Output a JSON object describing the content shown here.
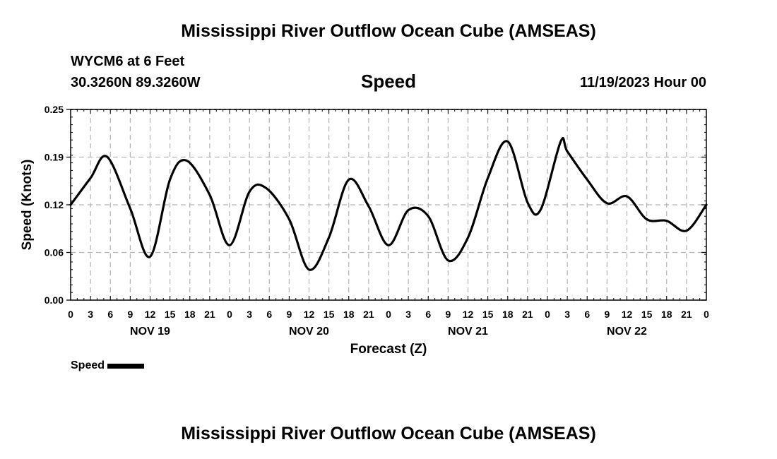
{
  "header": {
    "title": "Mississippi River Outflow Ocean Cube (AMSEAS)",
    "station": "WYCM6 at 6 Feet",
    "coords": "30.3260N  89.3260W",
    "variable": "Speed",
    "datetime": "11/19/2023 Hour 00"
  },
  "footer": {
    "title": "Mississippi River Outflow Ocean Cube (AMSEAS)"
  },
  "legend": {
    "label": "Speed",
    "color": "#000000"
  },
  "chart_data": {
    "type": "line",
    "title": "Speed",
    "xlabel": "Forecast (Z)",
    "ylabel": "Speed (Knots)",
    "xlim": [
      0,
      96
    ],
    "ylim": [
      0,
      0.25
    ],
    "y_ticks": [
      "0.00",
      "0.06",
      "0.12",
      "0.19",
      "0.25"
    ],
    "y_tick_values": [
      0,
      0.0625,
      0.125,
      0.1875,
      0.25
    ],
    "x_ticks": [
      "0",
      "3",
      "6",
      "9",
      "12",
      "15",
      "18",
      "21",
      "0",
      "3",
      "6",
      "9",
      "12",
      "15",
      "18",
      "21",
      "0",
      "3",
      "6",
      "9",
      "12",
      "15",
      "18",
      "21",
      "0",
      "3",
      "6",
      "9",
      "12",
      "15",
      "18",
      "21",
      "0"
    ],
    "day_labels": [
      {
        "label": "NOV 19",
        "hour": 12
      },
      {
        "label": "NOV 20",
        "hour": 36
      },
      {
        "label": "NOV 21",
        "hour": 60
      },
      {
        "label": "NOV 22",
        "hour": 84
      }
    ],
    "grid": true,
    "series": [
      {
        "name": "Speed",
        "color": "#000000",
        "x": [
          0,
          3,
          5.5,
          9,
          12,
          15,
          17.5,
          21,
          24,
          27,
          29.5,
          33,
          36,
          39,
          42,
          45,
          48,
          51,
          54,
          57,
          60,
          63,
          66,
          69,
          71,
          74,
          75,
          78,
          81,
          84,
          87,
          90,
          93,
          96
        ],
        "values": [
          0.125,
          0.16,
          0.188,
          0.12,
          0.057,
          0.158,
          0.183,
          0.138,
          0.072,
          0.142,
          0.147,
          0.106,
          0.04,
          0.082,
          0.158,
          0.123,
          0.072,
          0.118,
          0.11,
          0.052,
          0.082,
          0.16,
          0.208,
          0.128,
          0.119,
          0.208,
          0.195,
          0.158,
          0.127,
          0.136,
          0.106,
          0.104,
          0.091,
          0.125
        ]
      }
    ]
  }
}
